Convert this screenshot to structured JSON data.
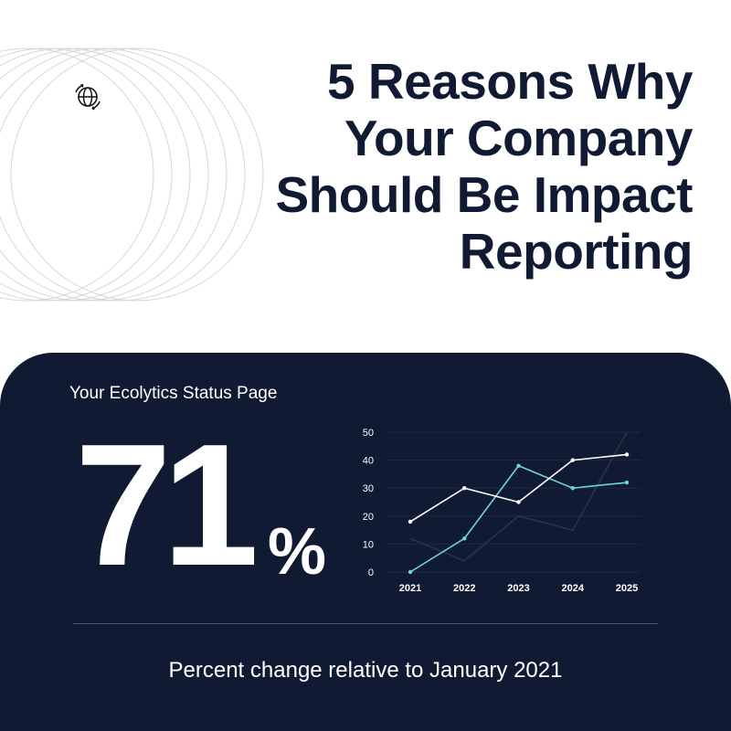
{
  "header": {
    "title_lines": [
      "5 Reasons Why",
      "Your Company",
      "Should Be Impact",
      "Reporting"
    ],
    "logo_icon": "globe-refresh-icon"
  },
  "panel": {
    "status_label": "Your Ecolytics Status Page",
    "big_number": "71",
    "percent_sign": "%",
    "caption": "Percent change relative to January 2021",
    "background": "#111a33"
  },
  "chart_data": {
    "type": "line",
    "x": [
      "2021",
      "2022",
      "2023",
      "2024",
      "2025"
    ],
    "ylim": [
      0,
      50
    ],
    "yticks": [
      0,
      10,
      20,
      30,
      40,
      50
    ],
    "grid": true,
    "series": [
      {
        "values": [
          18,
          30,
          25,
          40,
          42
        ],
        "color": "#ffffff"
      },
      {
        "values": [
          0,
          12,
          38,
          30,
          32
        ],
        "color": "#6fd3dc"
      },
      {
        "values": [
          12,
          4,
          20,
          15,
          50
        ],
        "color": "#2a3247"
      }
    ]
  }
}
